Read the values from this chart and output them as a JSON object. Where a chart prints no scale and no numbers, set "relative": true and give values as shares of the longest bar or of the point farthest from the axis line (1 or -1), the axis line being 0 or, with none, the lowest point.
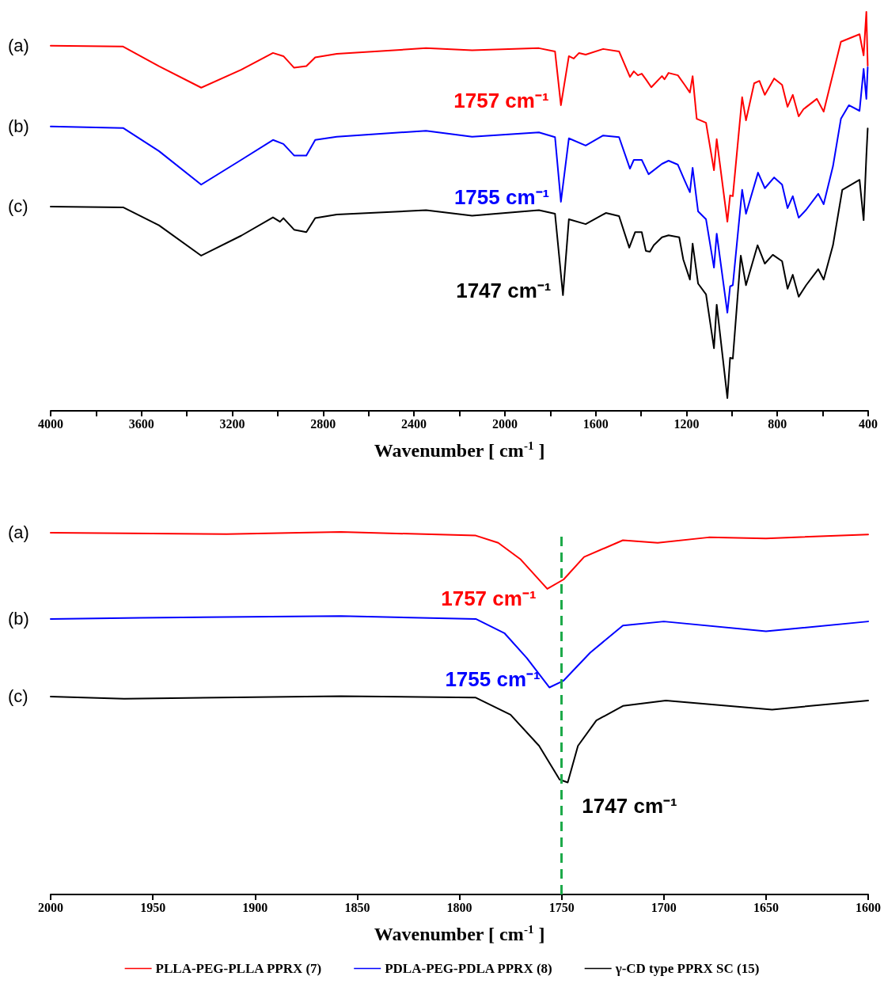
{
  "chart_data": [
    {
      "type": "line",
      "relative": true,
      "xlabel": "Wavenumber [ cm$^{-1}$ ]",
      "xlim": [
        4000,
        400
      ],
      "xticks": [
        4000,
        {
          "value": 3800,
          "label": null
        },
        3600,
        {
          "value": 3400,
          "label": null
        },
        3200,
        {
          "value": 3000,
          "label": null
        },
        2800,
        {
          "value": 2600,
          "label": null
        },
        2400,
        {
          "value": 2200,
          "label": null
        },
        2000,
        {
          "value": 1800,
          "label": null
        },
        1600,
        {
          "value": 1400,
          "label": null
        },
        1200,
        {
          "value": 1000,
          "label": null
        },
        800,
        {
          "value": 600,
          "label": null
        },
        400
      ],
      "tick_labels": "x",
      "grid": false,
      "marker": "none",
      "line_style": "solid",
      "annotations": [
        "(a)",
        "(b)",
        "(c)",
        {
          "text": "1757 cm⁻¹",
          "x": 1757,
          "y": 0.766
        },
        {
          "text": "1755 cm⁻¹",
          "x": 1755,
          "y": 0.524
        },
        {
          "text": "1747 cm⁻¹",
          "x": 1747,
          "y": 0.29
        }
      ],
      "series": [
        {
          "color": "#ff0000",
          "x": [
            4000,
            3681,
            3523,
            3337,
            3161,
            3021,
            2975,
            2928,
            2874,
            2835,
            2740,
            2347,
            2144,
            1850,
            1779,
            1753,
            1718,
            1697,
            1673,
            1644,
            1567,
            1497,
            1449,
            1432,
            1414,
            1397,
            1379,
            1355,
            1308,
            1297,
            1279,
            1238,
            1208,
            1185,
            1173,
            1155,
            1138,
            1114,
            1079,
            1067,
            1020,
            1008,
            996,
            955,
            938,
            902,
            879,
            855,
            814,
            779,
            755,
            732,
            706,
            685,
            626,
            596,
            520,
            438,
            420,
            408,
            402
          ],
          "values": [
            0.915,
            0.913,
            0.864,
            0.81,
            0.855,
            0.897,
            0.889,
            0.86,
            0.864,
            0.886,
            0.895,
            0.909,
            0.904,
            0.909,
            0.901,
            0.766,
            0.889,
            0.883,
            0.897,
            0.893,
            0.907,
            0.901,
            0.837,
            0.851,
            0.841,
            0.845,
            0.831,
            0.811,
            0.839,
            0.831,
            0.847,
            0.841,
            0.817,
            0.798,
            0.839,
            0.732,
            0.728,
            0.722,
            0.603,
            0.681,
            0.474,
            0.54,
            0.538,
            0.786,
            0.728,
            0.821,
            0.827,
            0.792,
            0.833,
            0.817,
            0.762,
            0.792,
            0.738,
            0.756,
            0.782,
            0.75,
            0.925,
            0.944,
            0.891,
            1.0,
            0.865
          ]
        },
        {
          "color": "#0000ff",
          "x": [
            4000,
            3681,
            3523,
            3337,
            3161,
            3021,
            2975,
            2928,
            2874,
            2835,
            2740,
            2347,
            2144,
            1850,
            1779,
            1753,
            1718,
            1644,
            1567,
            1497,
            1449,
            1432,
            1397,
            1367,
            1308,
            1279,
            1238,
            1208,
            1185,
            1173,
            1149,
            1114,
            1079,
            1067,
            1020,
            1008,
            996,
            955,
            938,
            885,
            855,
            814,
            779,
            755,
            732,
            706,
            673,
            620,
            596,
            555,
            520,
            485,
            438,
            420,
            408,
            402
          ],
          "values": [
            0.713,
            0.709,
            0.651,
            0.567,
            0.629,
            0.679,
            0.669,
            0.64,
            0.64,
            0.679,
            0.687,
            0.702,
            0.687,
            0.698,
            0.686,
            0.524,
            0.683,
            0.665,
            0.69,
            0.686,
            0.607,
            0.629,
            0.629,
            0.593,
            0.619,
            0.627,
            0.617,
            0.577,
            0.548,
            0.609,
            0.5,
            0.48,
            0.359,
            0.444,
            0.246,
            0.312,
            0.315,
            0.554,
            0.494,
            0.597,
            0.558,
            0.585,
            0.567,
            0.508,
            0.538,
            0.484,
            0.504,
            0.544,
            0.518,
            0.613,
            0.732,
            0.766,
            0.752,
            0.857,
            0.782,
            0.861
          ]
        },
        {
          "color": "#000000",
          "x": [
            4000,
            3681,
            3523,
            3337,
            3161,
            3021,
            2990,
            2975,
            2928,
            2874,
            2835,
            2740,
            2347,
            2144,
            1850,
            1779,
            1744,
            1718,
            1644,
            1555,
            1497,
            1452,
            1426,
            1397,
            1379,
            1361,
            1344,
            1308,
            1279,
            1232,
            1214,
            1185,
            1173,
            1149,
            1114,
            1079,
            1067,
            1020,
            1008,
            996,
            961,
            938,
            887,
            855,
            820,
            779,
            755,
            732,
            706,
            673,
            620,
            596,
            555,
            514,
            438,
            420,
            408,
            402
          ],
          "values": [
            0.512,
            0.51,
            0.465,
            0.389,
            0.439,
            0.485,
            0.474,
            0.483,
            0.454,
            0.448,
            0.483,
            0.492,
            0.503,
            0.489,
            0.503,
            0.494,
            0.29,
            0.48,
            0.468,
            0.496,
            0.488,
            0.409,
            0.448,
            0.448,
            0.401,
            0.399,
            0.415,
            0.435,
            0.44,
            0.435,
            0.379,
            0.329,
            0.419,
            0.319,
            0.292,
            0.157,
            0.266,
            0.032,
            0.133,
            0.131,
            0.389,
            0.315,
            0.415,
            0.369,
            0.391,
            0.375,
            0.306,
            0.341,
            0.286,
            0.315,
            0.355,
            0.329,
            0.415,
            0.554,
            0.579,
            0.478,
            0.639,
            0.708
          ]
        }
      ]
    },
    {
      "type": "line",
      "relative": true,
      "xlabel": "Wavenumber [ cm$^{-1}$ ]",
      "xlim": [
        2000,
        1600
      ],
      "xticks": [
        2000,
        1950,
        1900,
        1850,
        1800,
        1750,
        1700,
        1650,
        1600
      ],
      "tick_labels": "x",
      "grid": false,
      "marker": "none",
      "line_style": "solid",
      "legend": "bottom",
      "annotations": [
        "(a)",
        "(b)",
        "(c)",
        {
          "text": "1757 cm⁻¹",
          "x": 1757,
          "y": 0.843
        },
        {
          "text": "1755 cm⁻¹",
          "x": 1755,
          "y": 0.571
        },
        {
          "text": "1747 cm⁻¹",
          "x": 1747,
          "y": 0.309
        }
      ],
      "ref_lines": [
        {
          "axis": "x",
          "value": 1750,
          "color": "#1daa4a",
          "line_style": "dashed"
        }
      ],
      "series": [
        {
          "name": "PLLA-PEG-PLLA PPRX (7)",
          "color": "#ff0000",
          "x": [
            2000,
            1914,
            1858,
            1792,
            1781,
            1770,
            1757,
            1749,
            1739,
            1720,
            1703,
            1678,
            1650,
            1600
          ],
          "values": [
            0.998,
            0.994,
            1.0,
            0.99,
            0.97,
            0.924,
            0.843,
            0.869,
            0.931,
            0.977,
            0.97,
            0.985,
            0.982,
            0.993
          ]
        },
        {
          "name": "PDLA-PEG-PDLA PPRX (8)",
          "color": "#0000ff",
          "x": [
            2000,
            1956,
            1858,
            1792,
            1778,
            1767,
            1756,
            1749,
            1736,
            1720,
            1700,
            1650,
            1600
          ],
          "values": [
            0.76,
            0.763,
            0.768,
            0.76,
            0.721,
            0.652,
            0.571,
            0.59,
            0.667,
            0.742,
            0.753,
            0.726,
            0.753
          ]
        },
        {
          "name": "γ-CD type PPRX SC (15)",
          "color": "#000000",
          "x": [
            2000,
            1964,
            1858,
            1792,
            1775,
            1761,
            1751,
            1747,
            1742,
            1733,
            1720,
            1699,
            1647,
            1600
          ],
          "values": [
            0.546,
            0.54,
            0.547,
            0.543,
            0.496,
            0.41,
            0.317,
            0.309,
            0.41,
            0.48,
            0.52,
            0.535,
            0.51,
            0.535
          ]
        }
      ]
    }
  ]
}
